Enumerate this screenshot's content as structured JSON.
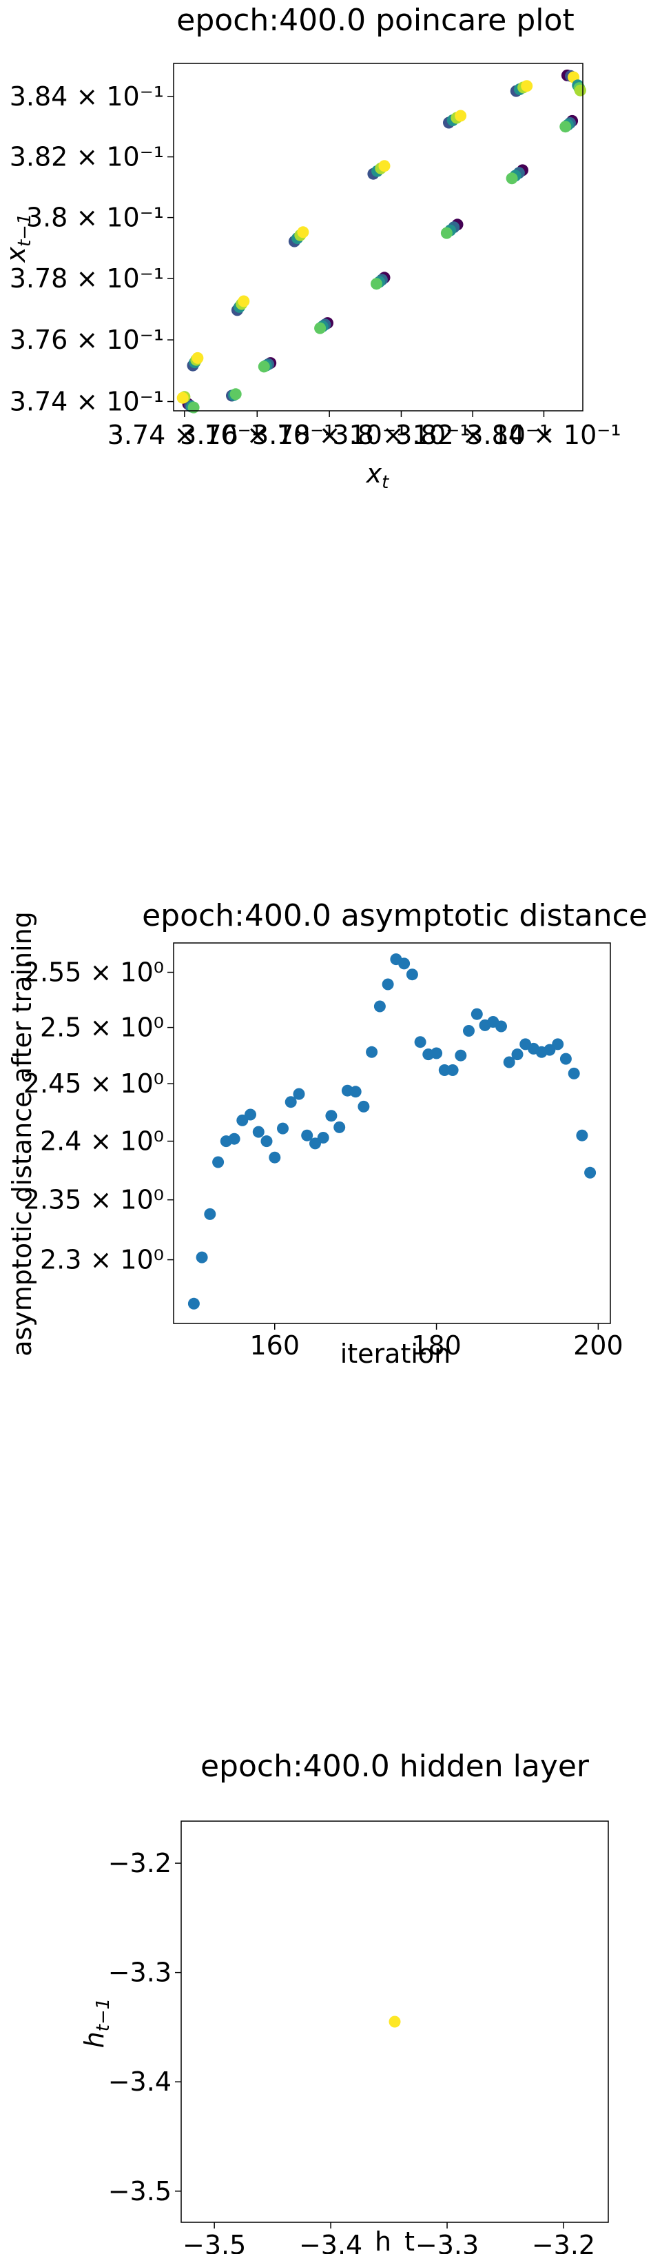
{
  "chart_data": [
    {
      "type": "scatter",
      "title": "epoch:400.0 poincare plot",
      "xlabel_main": "x",
      "xlabel_sub": "t",
      "ylabel_main": "x",
      "ylabel_sub": "t−1",
      "xlim": [
        0.3737,
        0.3851
      ],
      "ylim": [
        0.3737,
        0.3851
      ],
      "log_scale": true,
      "grid": false,
      "colormap": "viridis",
      "x_tick_labels": [
        "3.74 × 10⁻¹",
        "3.76 × 10⁻¹",
        "3.78 × 10⁻¹",
        "3.8 × 10⁻¹",
        "3.82 × 10⁻¹",
        "3.84 × 10⁻¹"
      ],
      "y_tick_labels": [
        "3.74 × 10⁻¹",
        "3.76 × 10⁻¹",
        "3.78 × 10⁻¹",
        "3.8 × 10⁻¹",
        "3.82 × 10⁻¹",
        "3.84 × 10⁻¹"
      ],
      "ticks": [
        0.374,
        0.376,
        0.378,
        0.38,
        0.382,
        0.384
      ],
      "points": [
        {
          "x": 0.3741,
          "y": 0.37392,
          "c": "#440154"
        },
        {
          "x": 0.37415,
          "y": 0.37387,
          "c": "#3b528b"
        },
        {
          "x": 0.3742,
          "y": 0.37383,
          "c": "#21918c"
        },
        {
          "x": 0.37425,
          "y": 0.37381,
          "c": "#5ec962"
        },
        {
          "x": 0.374,
          "y": 0.37415,
          "c": "#a8db34"
        },
        {
          "x": 0.37395,
          "y": 0.37412,
          "c": "#fde725"
        },
        {
          "x": 0.3753,
          "y": 0.37419,
          "c": "#3b528b"
        },
        {
          "x": 0.37536,
          "y": 0.37421,
          "c": "#21918c"
        },
        {
          "x": 0.37541,
          "y": 0.37424,
          "c": "#5ec962"
        },
        {
          "x": 0.37423,
          "y": 0.37517,
          "c": "#3b528b"
        },
        {
          "x": 0.37428,
          "y": 0.37527,
          "c": "#21918c"
        },
        {
          "x": 0.37432,
          "y": 0.37535,
          "c": "#a8db34"
        },
        {
          "x": 0.37436,
          "y": 0.37541,
          "c": "#fde725"
        },
        {
          "x": 0.37637,
          "y": 0.37525,
          "c": "#440154"
        },
        {
          "x": 0.37631,
          "y": 0.37521,
          "c": "#31688e"
        },
        {
          "x": 0.37625,
          "y": 0.37517,
          "c": "#21918c"
        },
        {
          "x": 0.37619,
          "y": 0.37513,
          "c": "#5ec962"
        },
        {
          "x": 0.37545,
          "y": 0.37697,
          "c": "#3b528b"
        },
        {
          "x": 0.37551,
          "y": 0.37707,
          "c": "#21918c"
        },
        {
          "x": 0.37557,
          "y": 0.37717,
          "c": "#a8db34"
        },
        {
          "x": 0.37563,
          "y": 0.37726,
          "c": "#fde725"
        },
        {
          "x": 0.37795,
          "y": 0.37655,
          "c": "#440154"
        },
        {
          "x": 0.37788,
          "y": 0.3765,
          "c": "#31688e"
        },
        {
          "x": 0.37781,
          "y": 0.37644,
          "c": "#21918c"
        },
        {
          "x": 0.37774,
          "y": 0.37638,
          "c": "#5ec962"
        },
        {
          "x": 0.37703,
          "y": 0.37922,
          "c": "#3b528b"
        },
        {
          "x": 0.37711,
          "y": 0.37932,
          "c": "#21918c"
        },
        {
          "x": 0.37719,
          "y": 0.37942,
          "c": "#a8db34"
        },
        {
          "x": 0.37727,
          "y": 0.37952,
          "c": "#fde725"
        },
        {
          "x": 0.37953,
          "y": 0.37803,
          "c": "#440154"
        },
        {
          "x": 0.37946,
          "y": 0.37796,
          "c": "#31688e"
        },
        {
          "x": 0.37939,
          "y": 0.37789,
          "c": "#21918c"
        },
        {
          "x": 0.37931,
          "y": 0.37783,
          "c": "#5ec962"
        },
        {
          "x": 0.37922,
          "y": 0.38144,
          "c": "#3b528b"
        },
        {
          "x": 0.37933,
          "y": 0.38153,
          "c": "#21918c"
        },
        {
          "x": 0.37943,
          "y": 0.38162,
          "c": "#a8db34"
        },
        {
          "x": 0.37953,
          "y": 0.3817,
          "c": "#fde725"
        },
        {
          "x": 0.38157,
          "y": 0.37977,
          "c": "#440154"
        },
        {
          "x": 0.38147,
          "y": 0.37968,
          "c": "#31688e"
        },
        {
          "x": 0.38137,
          "y": 0.37958,
          "c": "#21918c"
        },
        {
          "x": 0.38127,
          "y": 0.37949,
          "c": "#5ec962"
        },
        {
          "x": 0.38133,
          "y": 0.38313,
          "c": "#3b528b"
        },
        {
          "x": 0.38144,
          "y": 0.38321,
          "c": "#21918c"
        },
        {
          "x": 0.38155,
          "y": 0.38329,
          "c": "#a8db34"
        },
        {
          "x": 0.38166,
          "y": 0.38336,
          "c": "#fde725"
        },
        {
          "x": 0.3834,
          "y": 0.38156,
          "c": "#440154"
        },
        {
          "x": 0.3833,
          "y": 0.38147,
          "c": "#31688e"
        },
        {
          "x": 0.3832,
          "y": 0.38138,
          "c": "#21918c"
        },
        {
          "x": 0.3831,
          "y": 0.38129,
          "c": "#5ec962"
        },
        {
          "x": 0.38322,
          "y": 0.38418,
          "c": "#3b528b"
        },
        {
          "x": 0.38332,
          "y": 0.38424,
          "c": "#21918c"
        },
        {
          "x": 0.38342,
          "y": 0.3843,
          "c": "#a8db34"
        },
        {
          "x": 0.38352,
          "y": 0.38435,
          "c": "#fde725"
        },
        {
          "x": 0.3848,
          "y": 0.38319,
          "c": "#440154"
        },
        {
          "x": 0.38474,
          "y": 0.38312,
          "c": "#31688e"
        },
        {
          "x": 0.38468,
          "y": 0.38306,
          "c": "#21918c"
        },
        {
          "x": 0.38461,
          "y": 0.383,
          "c": "#5ec962"
        },
        {
          "x": 0.38466,
          "y": 0.3847,
          "c": "#440154"
        },
        {
          "x": 0.38476,
          "y": 0.38468,
          "c": "#3b528b"
        },
        {
          "x": 0.38484,
          "y": 0.38464,
          "c": "#fde725"
        },
        {
          "x": 0.38496,
          "y": 0.38437,
          "c": "#21918c"
        },
        {
          "x": 0.385,
          "y": 0.38428,
          "c": "#5ec962"
        },
        {
          "x": 0.38503,
          "y": 0.3842,
          "c": "#a8db34"
        }
      ]
    },
    {
      "type": "scatter",
      "title": "epoch:400.0 asymptotic distance",
      "xlabel": "iteration",
      "ylabel": "asymptotic distance after training",
      "xlim": [
        147.5,
        201.5
      ],
      "ylim": [
        2.248,
        2.577
      ],
      "grid": false,
      "color": "#1f77b4",
      "x_ticks": [
        160,
        180,
        200
      ],
      "x_tick_labels": [
        "160",
        "180",
        "200"
      ],
      "y_ticks": [
        2.3,
        2.35,
        2.4,
        2.45,
        2.5,
        2.55
      ],
      "y_tick_labels": [
        "2.3 × 10⁰",
        "2.35 × 10⁰",
        "2.4 × 10⁰",
        "2.45 × 10⁰",
        "2.5 × 10⁰",
        "2.55 × 10⁰"
      ],
      "x": [
        150,
        151,
        152,
        153,
        154,
        155,
        156,
        157,
        158,
        159,
        160,
        161,
        162,
        163,
        164,
        165,
        166,
        167,
        168,
        169,
        170,
        171,
        172,
        173,
        174,
        175,
        176,
        177,
        178,
        179,
        180,
        181,
        182,
        183,
        184,
        185,
        186,
        187,
        188,
        189,
        190,
        191,
        192,
        193,
        194,
        195,
        196,
        197,
        198,
        199
      ],
      "values": [
        2.264,
        2.302,
        2.338,
        2.382,
        2.4,
        2.402,
        2.418,
        2.423,
        2.408,
        2.4,
        2.386,
        2.411,
        2.434,
        2.441,
        2.405,
        2.398,
        2.403,
        2.422,
        2.412,
        2.444,
        2.443,
        2.43,
        2.478,
        2.519,
        2.539,
        2.562,
        2.558,
        2.548,
        2.487,
        2.476,
        2.477,
        2.462,
        2.462,
        2.475,
        2.497,
        2.512,
        2.502,
        2.505,
        2.501,
        2.469,
        2.476,
        2.485,
        2.481,
        2.478,
        2.48,
        2.485,
        2.472,
        2.459,
        2.405,
        2.373
      ]
    },
    {
      "type": "scatter",
      "title": "epoch:400.0 hidden layer",
      "xlabel": "h_t",
      "ylabel_main": "h",
      "ylabel_sub": "t−1",
      "xlim": [
        -3.5285,
        -3.1615
      ],
      "ylim": [
        -3.5285,
        -3.1615
      ],
      "grid": false,
      "color": "#fde725",
      "ticks": [
        -3.5,
        -3.4,
        -3.3,
        -3.2
      ],
      "tick_labels": [
        "−3.5",
        "−3.4",
        "−3.3",
        "−3.2"
      ],
      "points": [
        {
          "x": -3.345,
          "y": -3.345
        }
      ]
    }
  ]
}
